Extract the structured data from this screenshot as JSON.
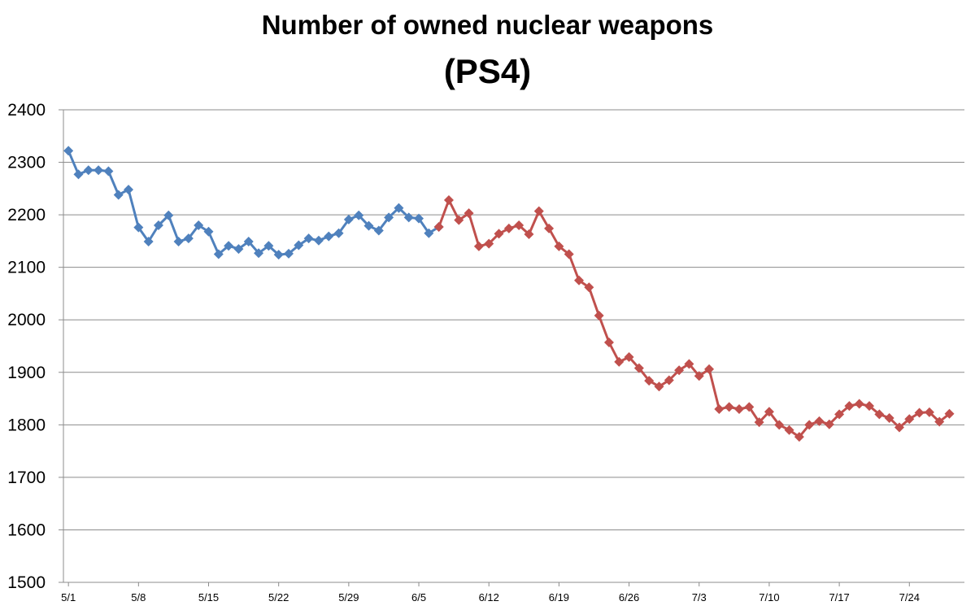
{
  "title": "Number of owned nuclear weapons",
  "subtitle": "(PS4)",
  "chart_data": {
    "type": "line",
    "title": "Number of owned nuclear weapons",
    "subtitle": "(PS4)",
    "xlabel": "",
    "ylabel": "",
    "ylim": [
      1500,
      2400
    ],
    "yticks": [
      1500,
      1600,
      1700,
      1800,
      1900,
      2000,
      2100,
      2200,
      2300,
      2400
    ],
    "xtick_labels": [
      "5/1",
      "5/8",
      "5/15",
      "5/22",
      "5/29",
      "6/5",
      "6/12",
      "6/19",
      "6/26",
      "7/3",
      "7/10",
      "7/17",
      "7/24"
    ],
    "grid": true,
    "legend": "none",
    "x_start": "5/1",
    "x_step_days": 1,
    "series": [
      {
        "color": "#4F81BD",
        "start_index": 0,
        "values": [
          2322,
          2277,
          2285,
          2285,
          2283,
          2238,
          2248,
          2176,
          2149,
          2180,
          2199,
          2149,
          2155,
          2180,
          2168,
          2125,
          2141,
          2135,
          2149,
          2127,
          2141,
          2124,
          2126,
          2142,
          2155,
          2151,
          2159,
          2165,
          2191,
          2199,
          2179,
          2170,
          2195,
          2213,
          2195,
          2193,
          2165,
          2177
        ]
      },
      {
        "color": "#C0504D",
        "start_index": 37,
        "values": [
          2177,
          2228,
          2190,
          2203,
          2140,
          2145,
          2164,
          2174,
          2180,
          2163,
          2207,
          2174,
          2140,
          2125,
          2075,
          2062,
          2008,
          1957,
          1920,
          1929,
          1908,
          1884,
          1873,
          1885,
          1904,
          1916,
          1893,
          1906,
          1830,
          1834,
          1830,
          1834,
          1805,
          1825,
          1800,
          1790,
          1777,
          1800,
          1807,
          1801,
          1820,
          1836,
          1840,
          1836,
          1820,
          1813,
          1795,
          1811,
          1823,
          1824,
          1806,
          1821
        ]
      }
    ]
  }
}
